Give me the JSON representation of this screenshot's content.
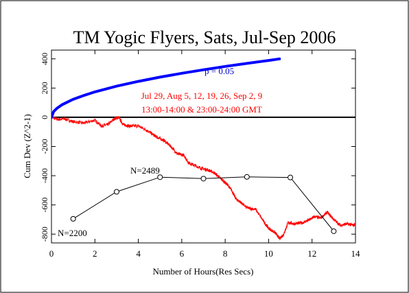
{
  "chart_data": {
    "type": "line",
    "title": "TM Yogic Flyers, Sats, Jul-Sep 2006",
    "xlabel": "Number of Hours(Res Secs)",
    "ylabel": "Cum Dev (Z^2-1)",
    "xlim": [
      0,
      14
    ],
    "ylim": [
      -860,
      460
    ],
    "x_ticks": [
      0,
      2,
      4,
      6,
      8,
      10,
      12,
      14
    ],
    "y_ticks": [
      -800,
      -600,
      -400,
      -200,
      0,
      200,
      400
    ],
    "x_tick_labels": [
      "0",
      "2",
      "4",
      "6",
      "8",
      "10",
      "12",
      "14"
    ],
    "y_tick_labels": [
      "-800",
      "-600",
      "-400",
      "-200",
      "0",
      "200",
      "400"
    ],
    "grid": false,
    "annotations": {
      "p_label": "p = 0.05",
      "dates": "Jul 29, Aug 5, 12, 19, 26, Sep 2, 9",
      "times": "13:00-14:00 & 23:00-24:00 GMT",
      "n_start": "N=2200",
      "n_peak": "N=2489"
    },
    "colors": {
      "cumdev": "#ff0000",
      "p_envelope": "#0000ff",
      "trials": "#000000",
      "annotation": "#ff0000",
      "p_label": "#0000cc"
    },
    "series": [
      {
        "style": "red-line",
        "x": [
          0,
          0.3,
          0.6,
          1.0,
          1.5,
          2.0,
          2.3,
          2.6,
          2.9,
          3.1,
          3.3,
          3.6,
          4.0,
          4.4,
          4.7,
          4.9,
          5.2,
          5.5,
          5.8,
          6.1,
          6.3,
          6.6,
          6.9,
          7.2,
          7.5,
          7.8,
          8.1,
          8.3,
          8.5,
          8.7,
          9.0,
          9.4,
          9.8,
          10.0,
          10.3,
          10.5,
          10.7,
          10.9,
          11.2,
          11.6,
          11.9,
          12.1,
          12.4,
          12.7,
          13.0,
          13.3,
          13.6,
          13.9,
          14.0
        ],
        "y": [
          0,
          -15,
          -10,
          -30,
          -40,
          -20,
          -60,
          -50,
          -10,
          0,
          -50,
          -60,
          -60,
          -90,
          -120,
          -140,
          -160,
          -200,
          -250,
          -260,
          -310,
          -330,
          -350,
          -360,
          -380,
          -420,
          -460,
          -500,
          -560,
          -580,
          -620,
          -630,
          -720,
          -760,
          -790,
          -830,
          -800,
          -720,
          -730,
          -720,
          -700,
          -680,
          -690,
          -650,
          -700,
          -740,
          -730,
          -740,
          -730
        ]
      },
      {
        "style": "blue-envelope",
        "x": [
          0,
          0.1,
          0.25,
          0.5,
          1,
          1.5,
          2,
          3,
          4,
          5,
          6,
          7,
          8,
          9,
          10,
          10.5
        ],
        "y": [
          0,
          39,
          61,
          87,
          123,
          150,
          174,
          213,
          246,
          275,
          301,
          325,
          348,
          369,
          389,
          400
        ]
      },
      {
        "style": "black-trials",
        "x": [
          1,
          3,
          5,
          7,
          9,
          11,
          13
        ],
        "y": [
          -695,
          -510,
          -410,
          -420,
          -408,
          -412,
          -780
        ]
      }
    ]
  }
}
